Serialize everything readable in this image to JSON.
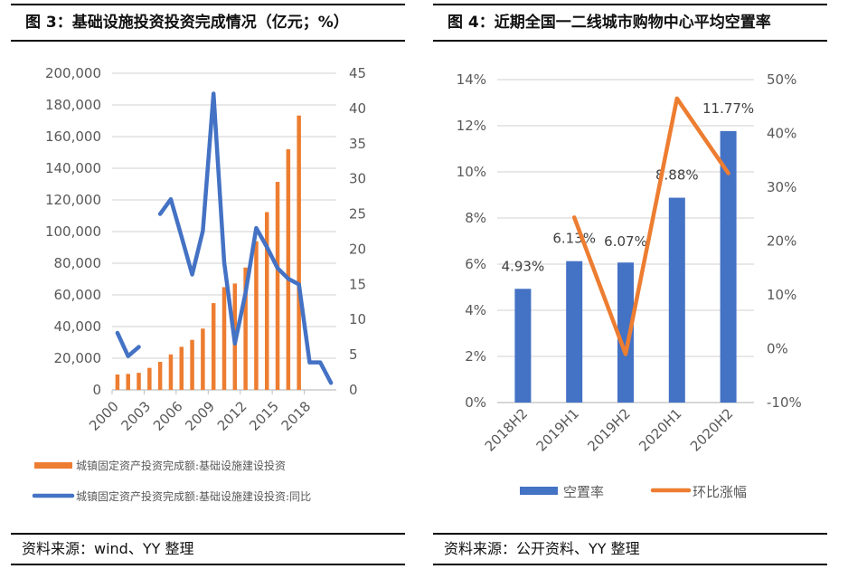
{
  "chart_data": [
    {
      "type": "bar",
      "title": "图 3：基础设施投资投资完成情况（亿元；%）",
      "source": "资料来源：wind、YY 整理",
      "categories": [
        "2000",
        "2001",
        "2002",
        "2003",
        "2004",
        "2005",
        "2006",
        "2007",
        "2008",
        "2009",
        "2010",
        "2011",
        "2012",
        "2013",
        "2014",
        "2015",
        "2016",
        "2017",
        "2018",
        "2019",
        "2020"
      ],
      "x_tick_labels": [
        "2000",
        "2003",
        "2006",
        "2009",
        "2012",
        "2015",
        "2018"
      ],
      "y_left": {
        "range": [
          0,
          200000
        ],
        "ticks": [
          "0",
          "20,000",
          "40,000",
          "60,000",
          "80,000",
          "100,000",
          "120,000",
          "140,000",
          "160,000",
          "180,000",
          "200,000"
        ]
      },
      "y_right": {
        "range": [
          0,
          45
        ],
        "ticks": [
          "0",
          "5",
          "10",
          "15",
          "20",
          "25",
          "30",
          "35",
          "40",
          "45"
        ]
      },
      "grid": true,
      "legend_placement": "bottom",
      "series": [
        {
          "name": "城镇固定资产投资完成额:基础设施建设投资",
          "type": "bar",
          "axis": "left",
          "color": "#ED7D31",
          "values": [
            9700,
            10100,
            10800,
            13900,
            17700,
            22400,
            27200,
            31600,
            38700,
            54800,
            64900,
            67200,
            77300,
            93900,
            112300,
            131400,
            152000,
            173300,
            null,
            null,
            null
          ]
        },
        {
          "name": "城镇固定资产投资完成额:基础设施建设投资:同比",
          "type": "line",
          "axis": "right",
          "color": "#4472C4",
          "values": [
            8.1,
            4.8,
            6.1,
            null,
            25.0,
            27.1,
            21.8,
            16.4,
            22.6,
            42.1,
            18.1,
            6.6,
            13.8,
            23.0,
            20.3,
            17.3,
            15.8,
            15.0,
            3.9,
            3.9,
            1.0
          ]
        }
      ]
    },
    {
      "type": "bar",
      "title": "图 4：近期全国一二线城市购物中心平均空置率",
      "source": "资料来源：公开资料、YY 整理",
      "categories": [
        "2018H2",
        "2019H1",
        "2019H2",
        "2020H1",
        "2020H2"
      ],
      "y_left": {
        "range": [
          0,
          14
        ],
        "ticks": [
          "0%",
          "2%",
          "4%",
          "6%",
          "8%",
          "10%",
          "12%",
          "14%"
        ]
      },
      "y_right": {
        "range": [
          -10,
          50
        ],
        "ticks": [
          "-10%",
          "0%",
          "10%",
          "20%",
          "30%",
          "40%",
          "50%"
        ]
      },
      "grid": true,
      "legend_placement": "bottom",
      "series": [
        {
          "name": "空置率",
          "type": "bar",
          "axis": "left",
          "color": "#4472C4",
          "values": [
            4.93,
            6.13,
            6.07,
            8.88,
            11.77
          ],
          "data_labels": [
            "4.93%",
            "6.13%",
            "6.07%",
            "8.88%",
            "11.77%"
          ]
        },
        {
          "name": "环比涨幅",
          "type": "line",
          "axis": "right",
          "color": "#ED7D31",
          "values": [
            null,
            24.4,
            -1.0,
            46.5,
            32.6
          ]
        }
      ]
    }
  ]
}
